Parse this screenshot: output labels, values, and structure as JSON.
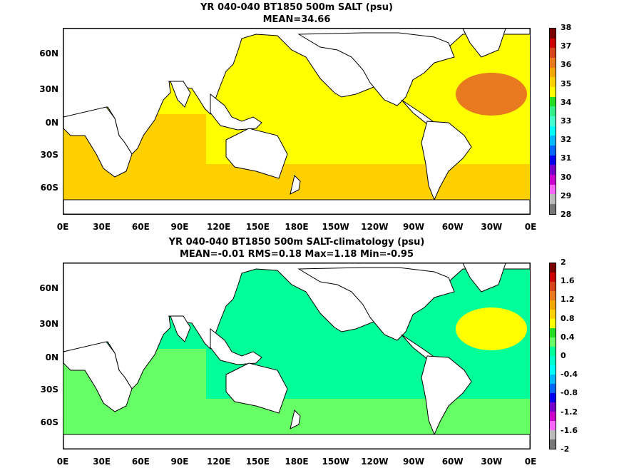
{
  "panels": [
    {
      "title_line1": "YR 040-040 BT1850 500m SALT (psu)",
      "title_line2": "MEAN=34.66",
      "colorbar": {
        "labels": [
          "38",
          "37",
          "36",
          "35",
          "34",
          "33",
          "32",
          "31",
          "30",
          "29",
          "28"
        ],
        "colors": [
          "#7a0000",
          "#cc0000",
          "#d6451a",
          "#e8791f",
          "#f2a600",
          "#ffd000",
          "#ffff00",
          "#22dd22",
          "#33ee88",
          "#44ffcc",
          "#00ffff",
          "#00b8ff",
          "#0066ff",
          "#0000ee",
          "#7700cc",
          "#cc00cc",
          "#ff66ff",
          "#bbbbbb",
          "#777777"
        ]
      },
      "field": {
        "background_color": "#ffff00",
        "ocean_color": "#ffd000",
        "south_band_color": "#ffd000",
        "atlantic_color": "#e8791f",
        "med_color": "#7a0000"
      }
    },
    {
      "title_line1": "YR 040-040 BT1850 500m SALT-climatology (psu)",
      "title_line2": "MEAN=-0.01   RMS=0.18   Max=1.18   Min=-0.95",
      "colorbar": {
        "labels": [
          "2",
          "1.6",
          "1.2",
          "0.8",
          "0.4",
          "0",
          "-0.4",
          "-0.8",
          "-1.2",
          "-1.6",
          "-2"
        ],
        "colors": [
          "#7a0000",
          "#cc0000",
          "#d6451a",
          "#e8791f",
          "#f2a600",
          "#ffd000",
          "#ffff00",
          "#22dd22",
          "#66ff66",
          "#00ff99",
          "#00ffcc",
          "#00ffff",
          "#00b8ff",
          "#0066ff",
          "#0000ee",
          "#7700cc",
          "#cc00cc",
          "#ff66ff",
          "#bbbbbb",
          "#777777"
        ]
      },
      "field": {
        "background_color": "#00ff99",
        "ocean_color": "#66ff66",
        "south_band_color": "#66ff66",
        "atlantic_color": "#ffff00",
        "med_color": "#00ffff"
      }
    }
  ],
  "axes": {
    "lat_labels": [
      "60N",
      "30N",
      "0N",
      "30S",
      "60S"
    ],
    "lon_labels": [
      "0E",
      "30E",
      "60E",
      "90E",
      "120E",
      "150E",
      "180E",
      "150W",
      "120W",
      "90W",
      "60W",
      "30W",
      "0E"
    ]
  }
}
